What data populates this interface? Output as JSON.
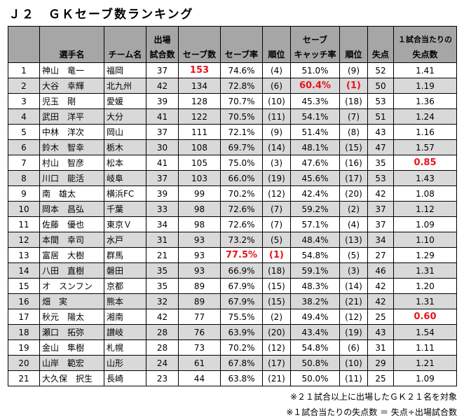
{
  "title": "Ｊ２　ＧＫセーブ数ランキング",
  "headers": {
    "player": "選手名",
    "team": "チーム名",
    "games_top": "出場",
    "games_bottom": "試合数",
    "saves": "セーブ数",
    "save_rate": "セーブ率",
    "rank1": "順位",
    "catch_top": "セーブ",
    "catch_bottom": "キャッチ率",
    "rank2": "順位",
    "goals_against": "失点",
    "per_game_top": "１試合当たりの",
    "per_game_bottom": "失点数"
  },
  "rows": [
    {
      "rank": "1",
      "name": "神山　竜一",
      "team": "福岡",
      "games": "37",
      "saves": "153",
      "save_rate": "74.6%",
      "save_rank": "(4)",
      "catch_rate": "51.0%",
      "catch_rank": "(9)",
      "ga": "52",
      "per_game": "1.41"
    },
    {
      "rank": "2",
      "name": "大谷　幸輝",
      "team": "北九州",
      "games": "42",
      "saves": "134",
      "save_rate": "72.8%",
      "save_rank": "(6)",
      "catch_rate": "60.4%",
      "catch_rank": "(1)",
      "ga": "50",
      "per_game": "1.19"
    },
    {
      "rank": "3",
      "name": "児玉　剛",
      "team": "愛媛",
      "games": "39",
      "saves": "128",
      "save_rate": "70.7%",
      "save_rank": "(10)",
      "catch_rate": "45.3%",
      "catch_rank": "(18)",
      "ga": "53",
      "per_game": "1.36"
    },
    {
      "rank": "4",
      "name": "武田　洋平",
      "team": "大分",
      "games": "41",
      "saves": "122",
      "save_rate": "70.5%",
      "save_rank": "(11)",
      "catch_rate": "54.1%",
      "catch_rank": "(7)",
      "ga": "51",
      "per_game": "1.24"
    },
    {
      "rank": "5",
      "name": "中林　洋次",
      "team": "岡山",
      "games": "37",
      "saves": "111",
      "save_rate": "72.1%",
      "save_rank": "(9)",
      "catch_rate": "51.4%",
      "catch_rank": "(8)",
      "ga": "43",
      "per_game": "1.16"
    },
    {
      "rank": "6",
      "name": "鈴木　智幸",
      "team": "栃木",
      "games": "30",
      "saves": "108",
      "save_rate": "69.7%",
      "save_rank": "(14)",
      "catch_rate": "48.1%",
      "catch_rank": "(15)",
      "ga": "47",
      "per_game": "1.57"
    },
    {
      "rank": "7",
      "name": "村山　智彦",
      "team": "松本",
      "games": "41",
      "saves": "105",
      "save_rate": "75.0%",
      "save_rank": "(3)",
      "catch_rate": "47.6%",
      "catch_rank": "(16)",
      "ga": "35",
      "per_game": "0.85"
    },
    {
      "rank": "8",
      "name": "川口　能活",
      "team": "岐阜",
      "games": "37",
      "saves": "103",
      "save_rate": "66.0%",
      "save_rank": "(19)",
      "catch_rate": "45.6%",
      "catch_rank": "(17)",
      "ga": "53",
      "per_game": "1.43"
    },
    {
      "rank": "9",
      "name": "南　雄太",
      "team": "横浜FC",
      "games": "39",
      "saves": "99",
      "save_rate": "70.2%",
      "save_rank": "(12)",
      "catch_rate": "42.4%",
      "catch_rank": "(20)",
      "ga": "42",
      "per_game": "1.08"
    },
    {
      "rank": "10",
      "name": "岡本　昌弘",
      "team": "千葉",
      "games": "33",
      "saves": "98",
      "save_rate": "72.6%",
      "save_rank": "(7)",
      "catch_rate": "59.2%",
      "catch_rank": "(2)",
      "ga": "37",
      "per_game": "1.12"
    },
    {
      "rank": "11",
      "name": "佐藤　優也",
      "team": "東京Ｖ",
      "games": "34",
      "saves": "98",
      "save_rate": "72.6%",
      "save_rank": "(7)",
      "catch_rate": "57.1%",
      "catch_rank": "(4)",
      "ga": "37",
      "per_game": "1.09"
    },
    {
      "rank": "12",
      "name": "本間　幸司",
      "team": "水戸",
      "games": "31",
      "saves": "93",
      "save_rate": "73.2%",
      "save_rank": "(5)",
      "catch_rate": "48.4%",
      "catch_rank": "(13)",
      "ga": "34",
      "per_game": "1.10"
    },
    {
      "rank": "13",
      "name": "富居　大樹",
      "team": "群馬",
      "games": "21",
      "saves": "93",
      "save_rate": "77.5%",
      "save_rank": "(1)",
      "catch_rate": "54.8%",
      "catch_rank": "(5)",
      "ga": "27",
      "per_game": "1.29"
    },
    {
      "rank": "14",
      "name": "八田　直樹",
      "team": "磐田",
      "games": "35",
      "saves": "93",
      "save_rate": "66.9%",
      "save_rank": "(18)",
      "catch_rate": "59.1%",
      "catch_rank": "(3)",
      "ga": "46",
      "per_game": "1.31"
    },
    {
      "rank": "15",
      "name": "オ　スンフン",
      "team": "京都",
      "games": "35",
      "saves": "89",
      "save_rate": "67.9%",
      "save_rank": "(15)",
      "catch_rate": "48.3%",
      "catch_rank": "(14)",
      "ga": "42",
      "per_game": "1.20"
    },
    {
      "rank": "16",
      "name": "畑　実",
      "team": "熊本",
      "games": "32",
      "saves": "89",
      "save_rate": "67.9%",
      "save_rank": "(15)",
      "catch_rate": "38.2%",
      "catch_rank": "(21)",
      "ga": "42",
      "per_game": "1.31"
    },
    {
      "rank": "17",
      "name": "秋元　陽太",
      "team": "湘南",
      "games": "42",
      "saves": "77",
      "save_rate": "75.5%",
      "save_rank": "(2)",
      "catch_rate": "49.4%",
      "catch_rank": "(12)",
      "ga": "25",
      "per_game": "0.60"
    },
    {
      "rank": "18",
      "name": "瀬口　拓弥",
      "team": "讃岐",
      "games": "28",
      "saves": "76",
      "save_rate": "63.9%",
      "save_rank": "(20)",
      "catch_rate": "43.4%",
      "catch_rank": "(19)",
      "ga": "43",
      "per_game": "1.54"
    },
    {
      "rank": "19",
      "name": "金山　隼樹",
      "team": "札幌",
      "games": "28",
      "saves": "73",
      "save_rate": "70.2%",
      "save_rank": "(12)",
      "catch_rate": "54.8%",
      "catch_rank": "(6)",
      "ga": "31",
      "per_game": "1.11"
    },
    {
      "rank": "20",
      "name": "山岸　範宏",
      "team": "山形",
      "games": "24",
      "saves": "61",
      "save_rate": "67.8%",
      "save_rank": "(17)",
      "catch_rate": "50.8%",
      "catch_rank": "(10)",
      "ga": "29",
      "per_game": "1.21"
    },
    {
      "rank": "21",
      "name": "大久保　択生",
      "team": "長崎",
      "games": "23",
      "saves": "44",
      "save_rate": "63.8%",
      "save_rank": "(21)",
      "catch_rate": "50.0%",
      "catch_rank": "(11)",
      "ga": "25",
      "per_game": "1.09"
    }
  ],
  "highlights": [
    {
      "row": 0,
      "col": "saves"
    },
    {
      "row": 1,
      "col": "catch_rate"
    },
    {
      "row": 1,
      "col": "catch_rank"
    },
    {
      "row": 6,
      "col": "per_game"
    },
    {
      "row": 12,
      "col": "save_rate"
    },
    {
      "row": 12,
      "col": "save_rank"
    },
    {
      "row": 16,
      "col": "per_game"
    }
  ],
  "highlight_color": "#e8141e",
  "notes": [
    "※２１試合以上に出場したＧＫ２１名を対象",
    "※１試合当たりの失点数 ＝ 失点÷出場試合数"
  ]
}
